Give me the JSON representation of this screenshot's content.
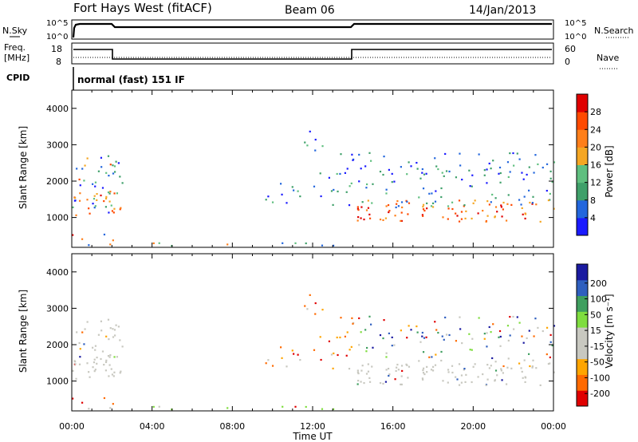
{
  "header": {
    "site": "Fort Hays West (fitACF)",
    "beam": "Beam 06",
    "date": "14/Jan/2013"
  },
  "top_panel": {
    "left_label": "N.Sky",
    "left_ticks": [
      "10^5",
      "10^0"
    ],
    "right_ticks": [
      "10^5",
      "10^0"
    ],
    "right_label": "N.Search"
  },
  "freq_panel": {
    "left_label_1": "Freq.",
    "left_label_2": "[MHz]",
    "left_ticks": [
      "18",
      "8"
    ],
    "right_ticks": [
      "60",
      "0"
    ],
    "right_label": "Nave"
  },
  "cpid": {
    "label": "CPID",
    "mode": "normal (fast) 151 IF"
  },
  "colors": {
    "power_scale": [
      "#1a1aff",
      "#2266dd",
      "#3fa06a",
      "#5fbf7f",
      "#f5a623",
      "#ff7f1a",
      "#ff4a00",
      "#e00000"
    ],
    "velocity_scale": [
      "#e00000",
      "#ff6a00",
      "#ffa500",
      "#c8c8c0",
      "#c8c8c0",
      "#7fdd3f",
      "#3f9f5f",
      "#2f5fbf",
      "#1a1aa0"
    ]
  },
  "chart_data": [
    {
      "type": "heatmap",
      "name": "power",
      "xlabel": "",
      "ylabel": "Slant Range [km]",
      "y_ticks": [
        "1000",
        "2000",
        "3000",
        "4000"
      ],
      "x_ticks": [
        "00:00",
        "04:00",
        "08:00",
        "12:00",
        "16:00",
        "20:00",
        "00:00"
      ],
      "colorbar_label": "Power [dB]",
      "colorbar_ticks": [
        "4",
        "8",
        "12",
        "16",
        "20",
        "24",
        "28"
      ],
      "xlim_hours": [
        0,
        24
      ],
      "ylim_km": [
        180,
        4500
      ]
    },
    {
      "type": "heatmap",
      "name": "velocity",
      "xlabel": "Time UT",
      "ylabel": "Slant Range [km]",
      "y_ticks": [
        "1000",
        "2000",
        "3000",
        "4000"
      ],
      "x_ticks": [
        "00:00",
        "04:00",
        "08:00",
        "12:00",
        "16:00",
        "20:00",
        "00:00"
      ],
      "colorbar_label": "Velocity [m s⁻¹]",
      "colorbar_ticks": [
        "200",
        "100",
        "50",
        "15",
        "-15",
        "-50",
        "-100",
        "-200"
      ],
      "xlim_hours": [
        0,
        24
      ],
      "ylim_km": [
        180,
        4500
      ]
    }
  ]
}
